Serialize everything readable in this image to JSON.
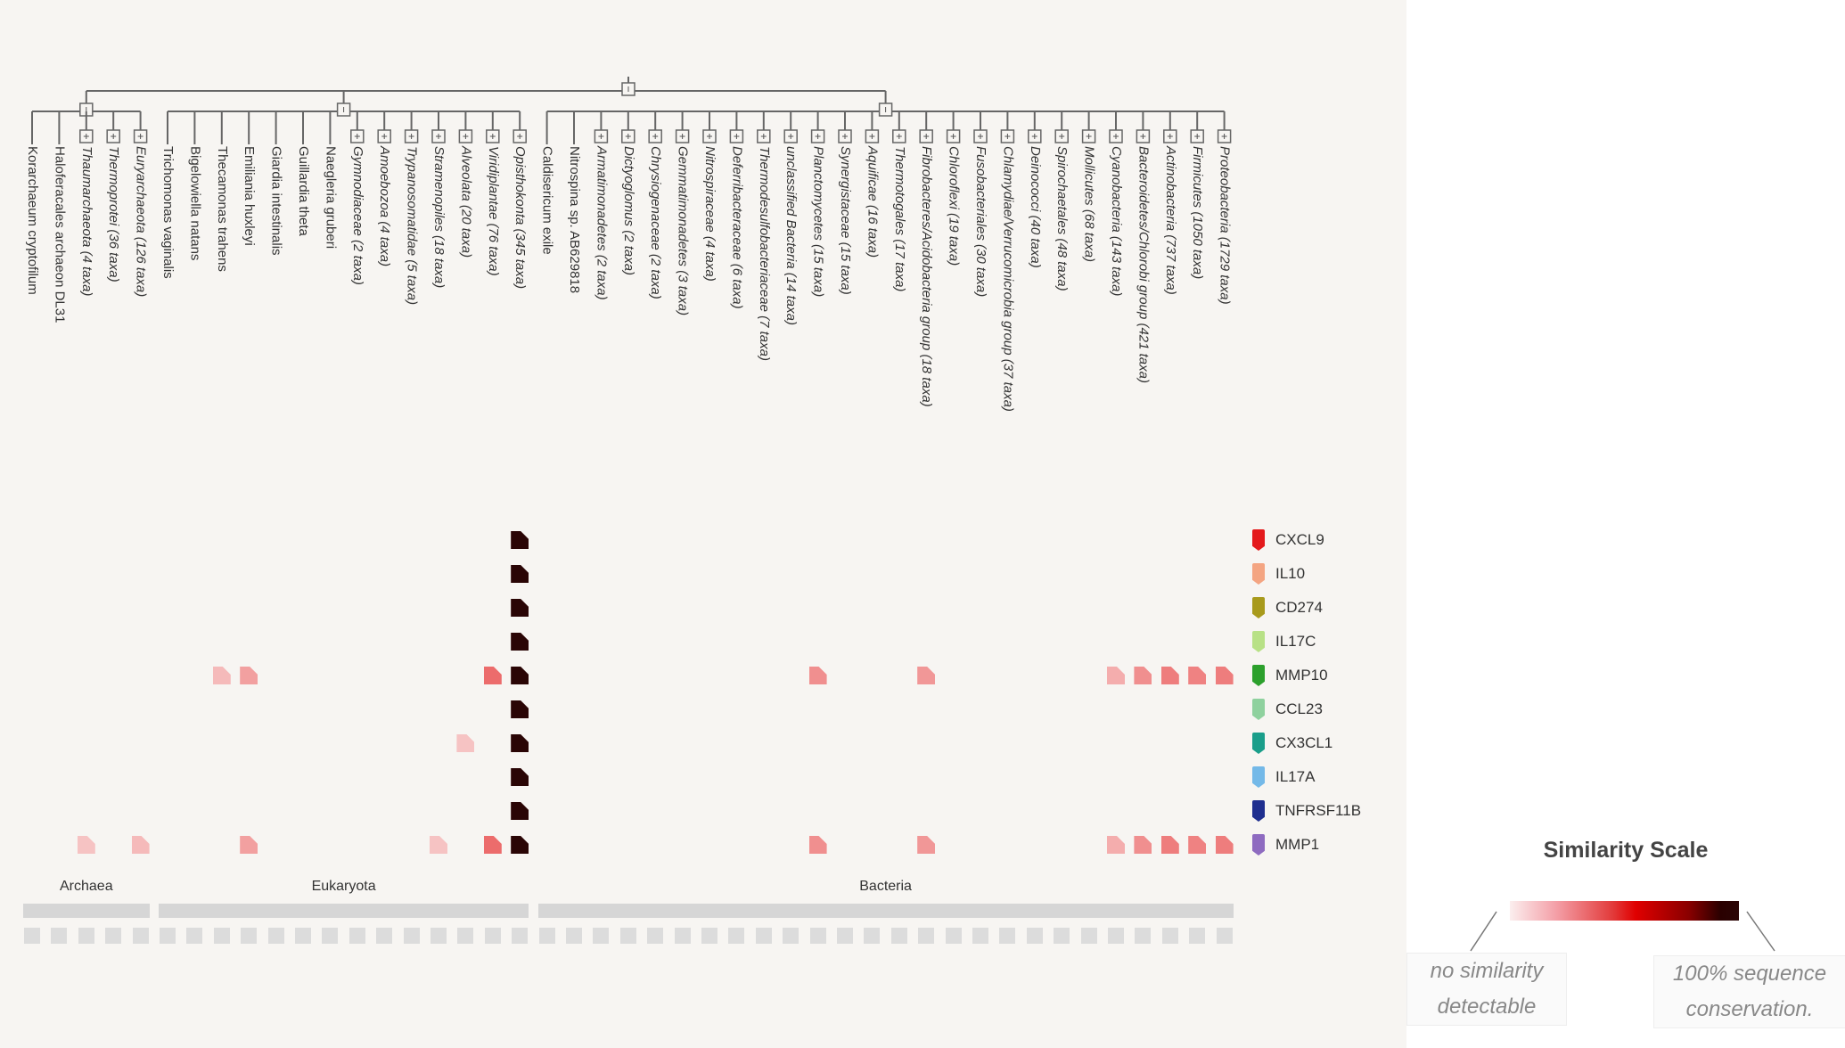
{
  "taxa": [
    {
      "name": "Korarchaeum cryptofilum",
      "collapsed": false,
      "domain": "Archaea"
    },
    {
      "name": "Haloferacales archaeon DL31",
      "collapsed": false,
      "domain": "Archaea"
    },
    {
      "name": "Thaumarchaeota (4 taxa)",
      "collapsed": true,
      "domain": "Archaea"
    },
    {
      "name": "Thermoprotei (36 taxa)",
      "collapsed": true,
      "domain": "Archaea"
    },
    {
      "name": "Euryarchaeota (126 taxa)",
      "collapsed": true,
      "domain": "Archaea"
    },
    {
      "name": "Trichomonas vaginalis",
      "collapsed": false,
      "domain": "Eukaryota"
    },
    {
      "name": "Bigelowiella natans",
      "collapsed": false,
      "domain": "Eukaryota"
    },
    {
      "name": "Thecamonas trahens",
      "collapsed": false,
      "domain": "Eukaryota"
    },
    {
      "name": "Emiliania huxleyi",
      "collapsed": false,
      "domain": "Eukaryota"
    },
    {
      "name": "Giardia intestinalis",
      "collapsed": false,
      "domain": "Eukaryota"
    },
    {
      "name": "Guillardia theta",
      "collapsed": false,
      "domain": "Eukaryota"
    },
    {
      "name": "Naegleria gruberi",
      "collapsed": false,
      "domain": "Eukaryota"
    },
    {
      "name": "Gymnodiaceae (2 taxa)",
      "collapsed": true,
      "domain": "Eukaryota"
    },
    {
      "name": "Amoebozoa (4 taxa)",
      "collapsed": true,
      "domain": "Eukaryota"
    },
    {
      "name": "Trypanosomatidae (5 taxa)",
      "collapsed": true,
      "domain": "Eukaryota"
    },
    {
      "name": "Stramenopiles (18 taxa)",
      "collapsed": true,
      "domain": "Eukaryota"
    },
    {
      "name": "Alveolata (20 taxa)",
      "collapsed": true,
      "domain": "Eukaryota"
    },
    {
      "name": "Viridiplantae (76 taxa)",
      "collapsed": true,
      "domain": "Eukaryota"
    },
    {
      "name": "Opisthokonta (345 taxa)",
      "collapsed": true,
      "domain": "Eukaryota"
    },
    {
      "name": "Caldisericum exile",
      "collapsed": false,
      "domain": "Bacteria"
    },
    {
      "name": "Nitrospina sp. AB629818",
      "collapsed": false,
      "domain": "Bacteria"
    },
    {
      "name": "Armatimonadetes (2 taxa)",
      "collapsed": true,
      "domain": "Bacteria"
    },
    {
      "name": "Dictyoglomus (2 taxa)",
      "collapsed": true,
      "domain": "Bacteria"
    },
    {
      "name": "Chrysiogenaceae (2 taxa)",
      "collapsed": true,
      "domain": "Bacteria"
    },
    {
      "name": "Gemmatimonadetes (3 taxa)",
      "collapsed": true,
      "domain": "Bacteria"
    },
    {
      "name": "Nitrospiraceae (4 taxa)",
      "collapsed": true,
      "domain": "Bacteria"
    },
    {
      "name": "Deferribacteraceae (6 taxa)",
      "collapsed": true,
      "domain": "Bacteria"
    },
    {
      "name": "Thermodesulfobacteriaceae (7 taxa)",
      "collapsed": true,
      "domain": "Bacteria"
    },
    {
      "name": "unclassified Bacteria (14 taxa)",
      "collapsed": true,
      "domain": "Bacteria"
    },
    {
      "name": "Planctomycetes (15 taxa)",
      "collapsed": true,
      "domain": "Bacteria"
    },
    {
      "name": "Synergistaceae (15 taxa)",
      "collapsed": true,
      "domain": "Bacteria"
    },
    {
      "name": "Aquificae (16 taxa)",
      "collapsed": true,
      "domain": "Bacteria"
    },
    {
      "name": "Thermotogales (17 taxa)",
      "collapsed": true,
      "domain": "Bacteria"
    },
    {
      "name": "Fibrobacteres/Acidobacteria group (18 taxa)",
      "collapsed": true,
      "domain": "Bacteria"
    },
    {
      "name": "Chloroflexi (19 taxa)",
      "collapsed": true,
      "domain": "Bacteria"
    },
    {
      "name": "Fusobacteriales (30 taxa)",
      "collapsed": true,
      "domain": "Bacteria"
    },
    {
      "name": "Chlamydiae/Verrucomicrobia group (37 taxa)",
      "collapsed": true,
      "domain": "Bacteria"
    },
    {
      "name": "Deinococci (40 taxa)",
      "collapsed": true,
      "domain": "Bacteria"
    },
    {
      "name": "Spirochaetales (48 taxa)",
      "collapsed": true,
      "domain": "Bacteria"
    },
    {
      "name": "Mollicutes (68 taxa)",
      "collapsed": true,
      "domain": "Bacteria"
    },
    {
      "name": "Cyanobacteria (143 taxa)",
      "collapsed": true,
      "domain": "Bacteria"
    },
    {
      "name": "Bacteroidetes/Chlorobi group (421 taxa)",
      "collapsed": true,
      "domain": "Bacteria"
    },
    {
      "name": "Actinobacteria (737 taxa)",
      "collapsed": true,
      "domain": "Bacteria"
    },
    {
      "name": "Firmicutes (1050 taxa)",
      "collapsed": true,
      "domain": "Bacteria"
    },
    {
      "name": "Proteobacteria (1729 taxa)",
      "collapsed": true,
      "domain": "Bacteria"
    }
  ],
  "domains": [
    "Archaea",
    "Eukaryota",
    "Bacteria"
  ],
  "genes": [
    {
      "name": "CXCL9",
      "color": "#e41a1c"
    },
    {
      "name": "IL10",
      "color": "#f4a582"
    },
    {
      "name": "CD274",
      "color": "#a89a1c"
    },
    {
      "name": "IL17C",
      "color": "#b8e186"
    },
    {
      "name": "MMP10",
      "color": "#2ca02c"
    },
    {
      "name": "CCL23",
      "color": "#8fd19e"
    },
    {
      "name": "CX3CL1",
      "color": "#1a9e8a"
    },
    {
      "name": "IL17A",
      "color": "#74b9e8"
    },
    {
      "name": "TNFRSF11B",
      "color": "#1f2f8f"
    },
    {
      "name": "MMP1",
      "color": "#8e6bc0"
    }
  ],
  "similarity_cells": [
    {
      "gene": "CXCL9",
      "taxon": "Opisthokonta (345 taxa)",
      "similarity": 1.0
    },
    {
      "gene": "IL10",
      "taxon": "Opisthokonta (345 taxa)",
      "similarity": 1.0
    },
    {
      "gene": "CD274",
      "taxon": "Opisthokonta (345 taxa)",
      "similarity": 1.0
    },
    {
      "gene": "IL17C",
      "taxon": "Opisthokonta (345 taxa)",
      "similarity": 1.0
    },
    {
      "gene": "MMP10",
      "taxon": "Thecamonas trahens",
      "similarity": 0.12
    },
    {
      "gene": "MMP10",
      "taxon": "Emiliania huxleyi",
      "similarity": 0.18
    },
    {
      "gene": "MMP10",
      "taxon": "Viridiplantae (76 taxa)",
      "similarity": 0.3
    },
    {
      "gene": "MMP10",
      "taxon": "Opisthokonta (345 taxa)",
      "similarity": 1.0
    },
    {
      "gene": "MMP10",
      "taxon": "Planctomycetes (15 taxa)",
      "similarity": 0.22
    },
    {
      "gene": "MMP10",
      "taxon": "Fibrobacteres/Acidobacteria group (18 taxa)",
      "similarity": 0.2
    },
    {
      "gene": "MMP10",
      "taxon": "Cyanobacteria (143 taxa)",
      "similarity": 0.15
    },
    {
      "gene": "MMP10",
      "taxon": "Bacteroidetes/Chlorobi group (421 taxa)",
      "similarity": 0.22
    },
    {
      "gene": "MMP10",
      "taxon": "Actinobacteria (737 taxa)",
      "similarity": 0.26
    },
    {
      "gene": "MMP10",
      "taxon": "Firmicutes (1050 taxa)",
      "similarity": 0.25
    },
    {
      "gene": "MMP10",
      "taxon": "Proteobacteria (1729 taxa)",
      "similarity": 0.26
    },
    {
      "gene": "CCL23",
      "taxon": "Opisthokonta (345 taxa)",
      "similarity": 1.0
    },
    {
      "gene": "CX3CL1",
      "taxon": "Alveolata (20 taxa)",
      "similarity": 0.1
    },
    {
      "gene": "CX3CL1",
      "taxon": "Opisthokonta (345 taxa)",
      "similarity": 1.0
    },
    {
      "gene": "IL17A",
      "taxon": "Opisthokonta (345 taxa)",
      "similarity": 1.0
    },
    {
      "gene": "TNFRSF11B",
      "taxon": "Opisthokonta (345 taxa)",
      "similarity": 1.0
    },
    {
      "gene": "MMP1",
      "taxon": "Thaumarchaeota (4 taxa)",
      "similarity": 0.1
    },
    {
      "gene": "MMP1",
      "taxon": "Euryarchaeota (126 taxa)",
      "similarity": 0.12
    },
    {
      "gene": "MMP1",
      "taxon": "Emiliania huxleyi",
      "similarity": 0.18
    },
    {
      "gene": "MMP1",
      "taxon": "Stramenopiles (18 taxa)",
      "similarity": 0.1
    },
    {
      "gene": "MMP1",
      "taxon": "Viridiplantae (76 taxa)",
      "similarity": 0.3
    },
    {
      "gene": "MMP1",
      "taxon": "Opisthokonta (345 taxa)",
      "similarity": 1.0
    },
    {
      "gene": "MMP1",
      "taxon": "Planctomycetes (15 taxa)",
      "similarity": 0.22
    },
    {
      "gene": "MMP1",
      "taxon": "Fibrobacteres/Acidobacteria group (18 taxa)",
      "similarity": 0.2
    },
    {
      "gene": "MMP1",
      "taxon": "Cyanobacteria (143 taxa)",
      "similarity": 0.15
    },
    {
      "gene": "MMP1",
      "taxon": "Bacteroidetes/Chlorobi group (421 taxa)",
      "similarity": 0.22
    },
    {
      "gene": "MMP1",
      "taxon": "Actinobacteria (737 taxa)",
      "similarity": 0.26
    },
    {
      "gene": "MMP1",
      "taxon": "Firmicutes (1050 taxa)",
      "similarity": 0.25
    },
    {
      "gene": "MMP1",
      "taxon": "Proteobacteria (1729 taxa)",
      "similarity": 0.26
    }
  ],
  "scale": {
    "title": "Similarity Scale",
    "low_label_1": "no similarity",
    "low_label_2": "detectable",
    "high_label_1": "100% sequence",
    "high_label_2": "conservation.",
    "colors": [
      "#fbeeee",
      "#e00000",
      "#2a0505"
    ]
  },
  "icons": {
    "collapsed_node": "plus-box-icon",
    "expanded_node": "minus-box-icon"
  }
}
